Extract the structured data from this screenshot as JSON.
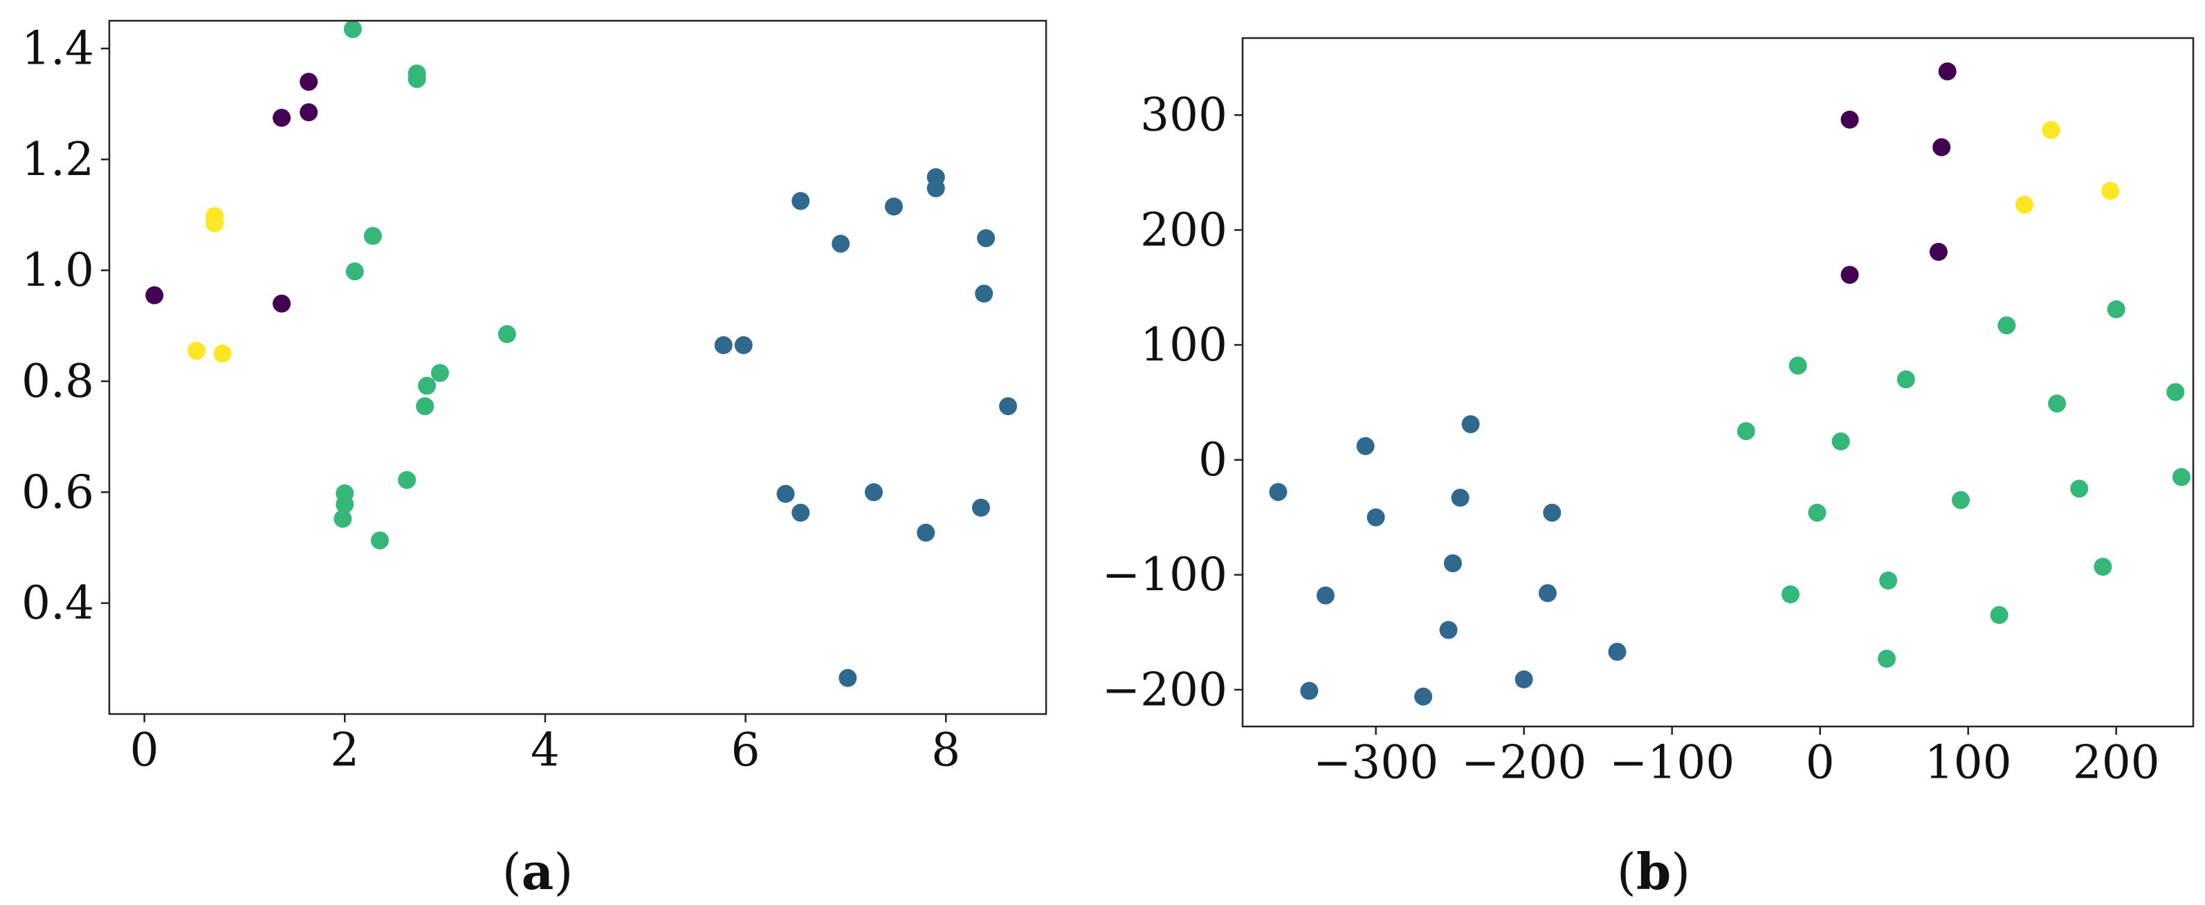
{
  "colors": {
    "purple": "#440154",
    "blue": "#31688e",
    "green": "#35b779",
    "yellow": "#fde725"
  },
  "chart_data": [
    {
      "type": "scatter",
      "caption": "(a)",
      "title": "",
      "xlabel": "",
      "ylabel": "",
      "xlim": [
        -0.35,
        9.0
      ],
      "ylim": [
        0.2,
        1.45
      ],
      "xticks": [
        0,
        2,
        4,
        6,
        8
      ],
      "yticks": [
        0.4,
        0.6,
        0.8,
        1.0,
        1.2,
        1.4
      ],
      "xtick_labels": [
        "0",
        "2",
        "4",
        "6",
        "8"
      ],
      "ytick_labels": [
        "0.4",
        "0.6",
        "0.8",
        "1.0",
        "1.2",
        "1.4"
      ],
      "grid": false,
      "legend": "none",
      "series": [
        {
          "color": "#440154",
          "points": [
            [
              0.1,
              0.955
            ],
            [
              1.37,
              0.94
            ],
            [
              1.37,
              1.275
            ],
            [
              1.64,
              1.285
            ],
            [
              1.64,
              1.34
            ]
          ]
        },
        {
          "color": "#fde725",
          "points": [
            [
              0.52,
              0.855
            ],
            [
              0.78,
              0.85
            ],
            [
              0.7,
              1.098
            ],
            [
              0.7,
              1.085
            ]
          ]
        },
        {
          "color": "#35b779",
          "points": [
            [
              2.08,
              1.435
            ],
            [
              2.72,
              1.355
            ],
            [
              2.72,
              1.345
            ],
            [
              2.28,
              1.062
            ],
            [
              2.1,
              0.998
            ],
            [
              3.62,
              0.885
            ],
            [
              2.95,
              0.815
            ],
            [
              2.82,
              0.792
            ],
            [
              2.8,
              0.755
            ],
            [
              2.62,
              0.622
            ],
            [
              2.0,
              0.598
            ],
            [
              2.0,
              0.578
            ],
            [
              1.98,
              0.552
            ],
            [
              2.35,
              0.513
            ]
          ]
        },
        {
          "color": "#31688e",
          "points": [
            [
              5.78,
              0.865
            ],
            [
              5.98,
              0.865
            ],
            [
              6.55,
              1.125
            ],
            [
              6.95,
              1.048
            ],
            [
              7.48,
              1.115
            ],
            [
              7.9,
              1.168
            ],
            [
              7.9,
              1.148
            ],
            [
              8.4,
              1.058
            ],
            [
              8.38,
              0.958
            ],
            [
              8.62,
              0.755
            ],
            [
              6.4,
              0.597
            ],
            [
              6.55,
              0.563
            ],
            [
              7.28,
              0.6
            ],
            [
              7.8,
              0.527
            ],
            [
              8.35,
              0.572
            ],
            [
              7.02,
              0.265
            ]
          ]
        }
      ]
    },
    {
      "type": "scatter",
      "caption": "(b)",
      "title": "",
      "xlabel": "",
      "ylabel": "",
      "xlim": [
        -390,
        252
      ],
      "ylim": [
        -232,
        367
      ],
      "xticks": [
        -300,
        -200,
        -100,
        0,
        100,
        200
      ],
      "yticks": [
        -200,
        -100,
        0,
        100,
        200,
        300
      ],
      "xtick_labels": [
        "−300",
        "−200",
        "−100",
        "0",
        "100",
        "200"
      ],
      "ytick_labels": [
        "−200",
        "−100",
        "0",
        "100",
        "200",
        "300"
      ],
      "grid": false,
      "legend": "none",
      "series": [
        {
          "color": "#440154",
          "points": [
            [
              86,
              338
            ],
            [
              20,
              296
            ],
            [
              82,
              272
            ],
            [
              20,
              161
            ],
            [
              80,
              181
            ]
          ]
        },
        {
          "color": "#fde725",
          "points": [
            [
              156,
              287
            ],
            [
              138,
              222
            ],
            [
              196,
              234
            ]
          ]
        },
        {
          "color": "#35b779",
          "points": [
            [
              200,
              131
            ],
            [
              126,
              117
            ],
            [
              -15,
              82
            ],
            [
              58,
              70
            ],
            [
              240,
              59
            ],
            [
              160,
              49
            ],
            [
              -50,
              25
            ],
            [
              14,
              16
            ],
            [
              -2,
              -46
            ],
            [
              95,
              -35
            ],
            [
              175,
              -25
            ],
            [
              244,
              -15
            ],
            [
              -20,
              -117
            ],
            [
              46,
              -105
            ],
            [
              121,
              -135
            ],
            [
              191,
              -93
            ],
            [
              45,
              -173
            ]
          ]
        },
        {
          "color": "#31688e",
          "points": [
            [
              -236,
              31
            ],
            [
              -307,
              12
            ],
            [
              -366,
              -28
            ],
            [
              -300,
              -50
            ],
            [
              -243,
              -33
            ],
            [
              -181,
              -46
            ],
            [
              -248,
              -90
            ],
            [
              -334,
              -118
            ],
            [
              -184,
              -116
            ],
            [
              -251,
              -148
            ],
            [
              -137,
              -167
            ],
            [
              -345,
              -201
            ],
            [
              -268,
              -206
            ],
            [
              -200,
              -191
            ]
          ]
        }
      ]
    }
  ]
}
